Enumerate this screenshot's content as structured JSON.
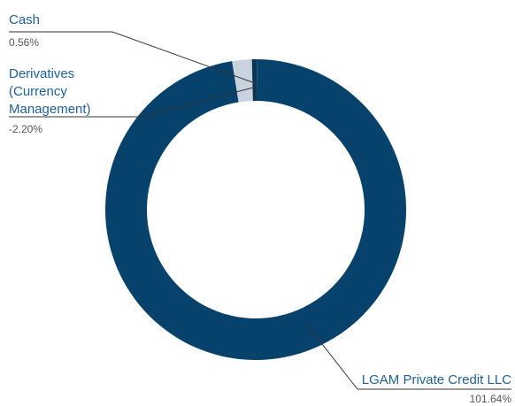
{
  "chart_data": {
    "type": "pie",
    "style": "donut",
    "slices": [
      {
        "label": "LGAM Private Credit LLC",
        "value": 101.64,
        "value_label": "101.64%",
        "color": "#06426b"
      },
      {
        "label": "Cash",
        "value": 0.56,
        "value_label": "0.56%",
        "color": "#0b3553"
      },
      {
        "label": "Derivatives (Currency Management)",
        "label_lines": [
          "Derivatives",
          "(Currency",
          "Management)"
        ],
        "value": -2.2,
        "value_label": "-2.20%",
        "color": "#c8d3dd"
      }
    ],
    "label_color": "#1f5f96"
  }
}
